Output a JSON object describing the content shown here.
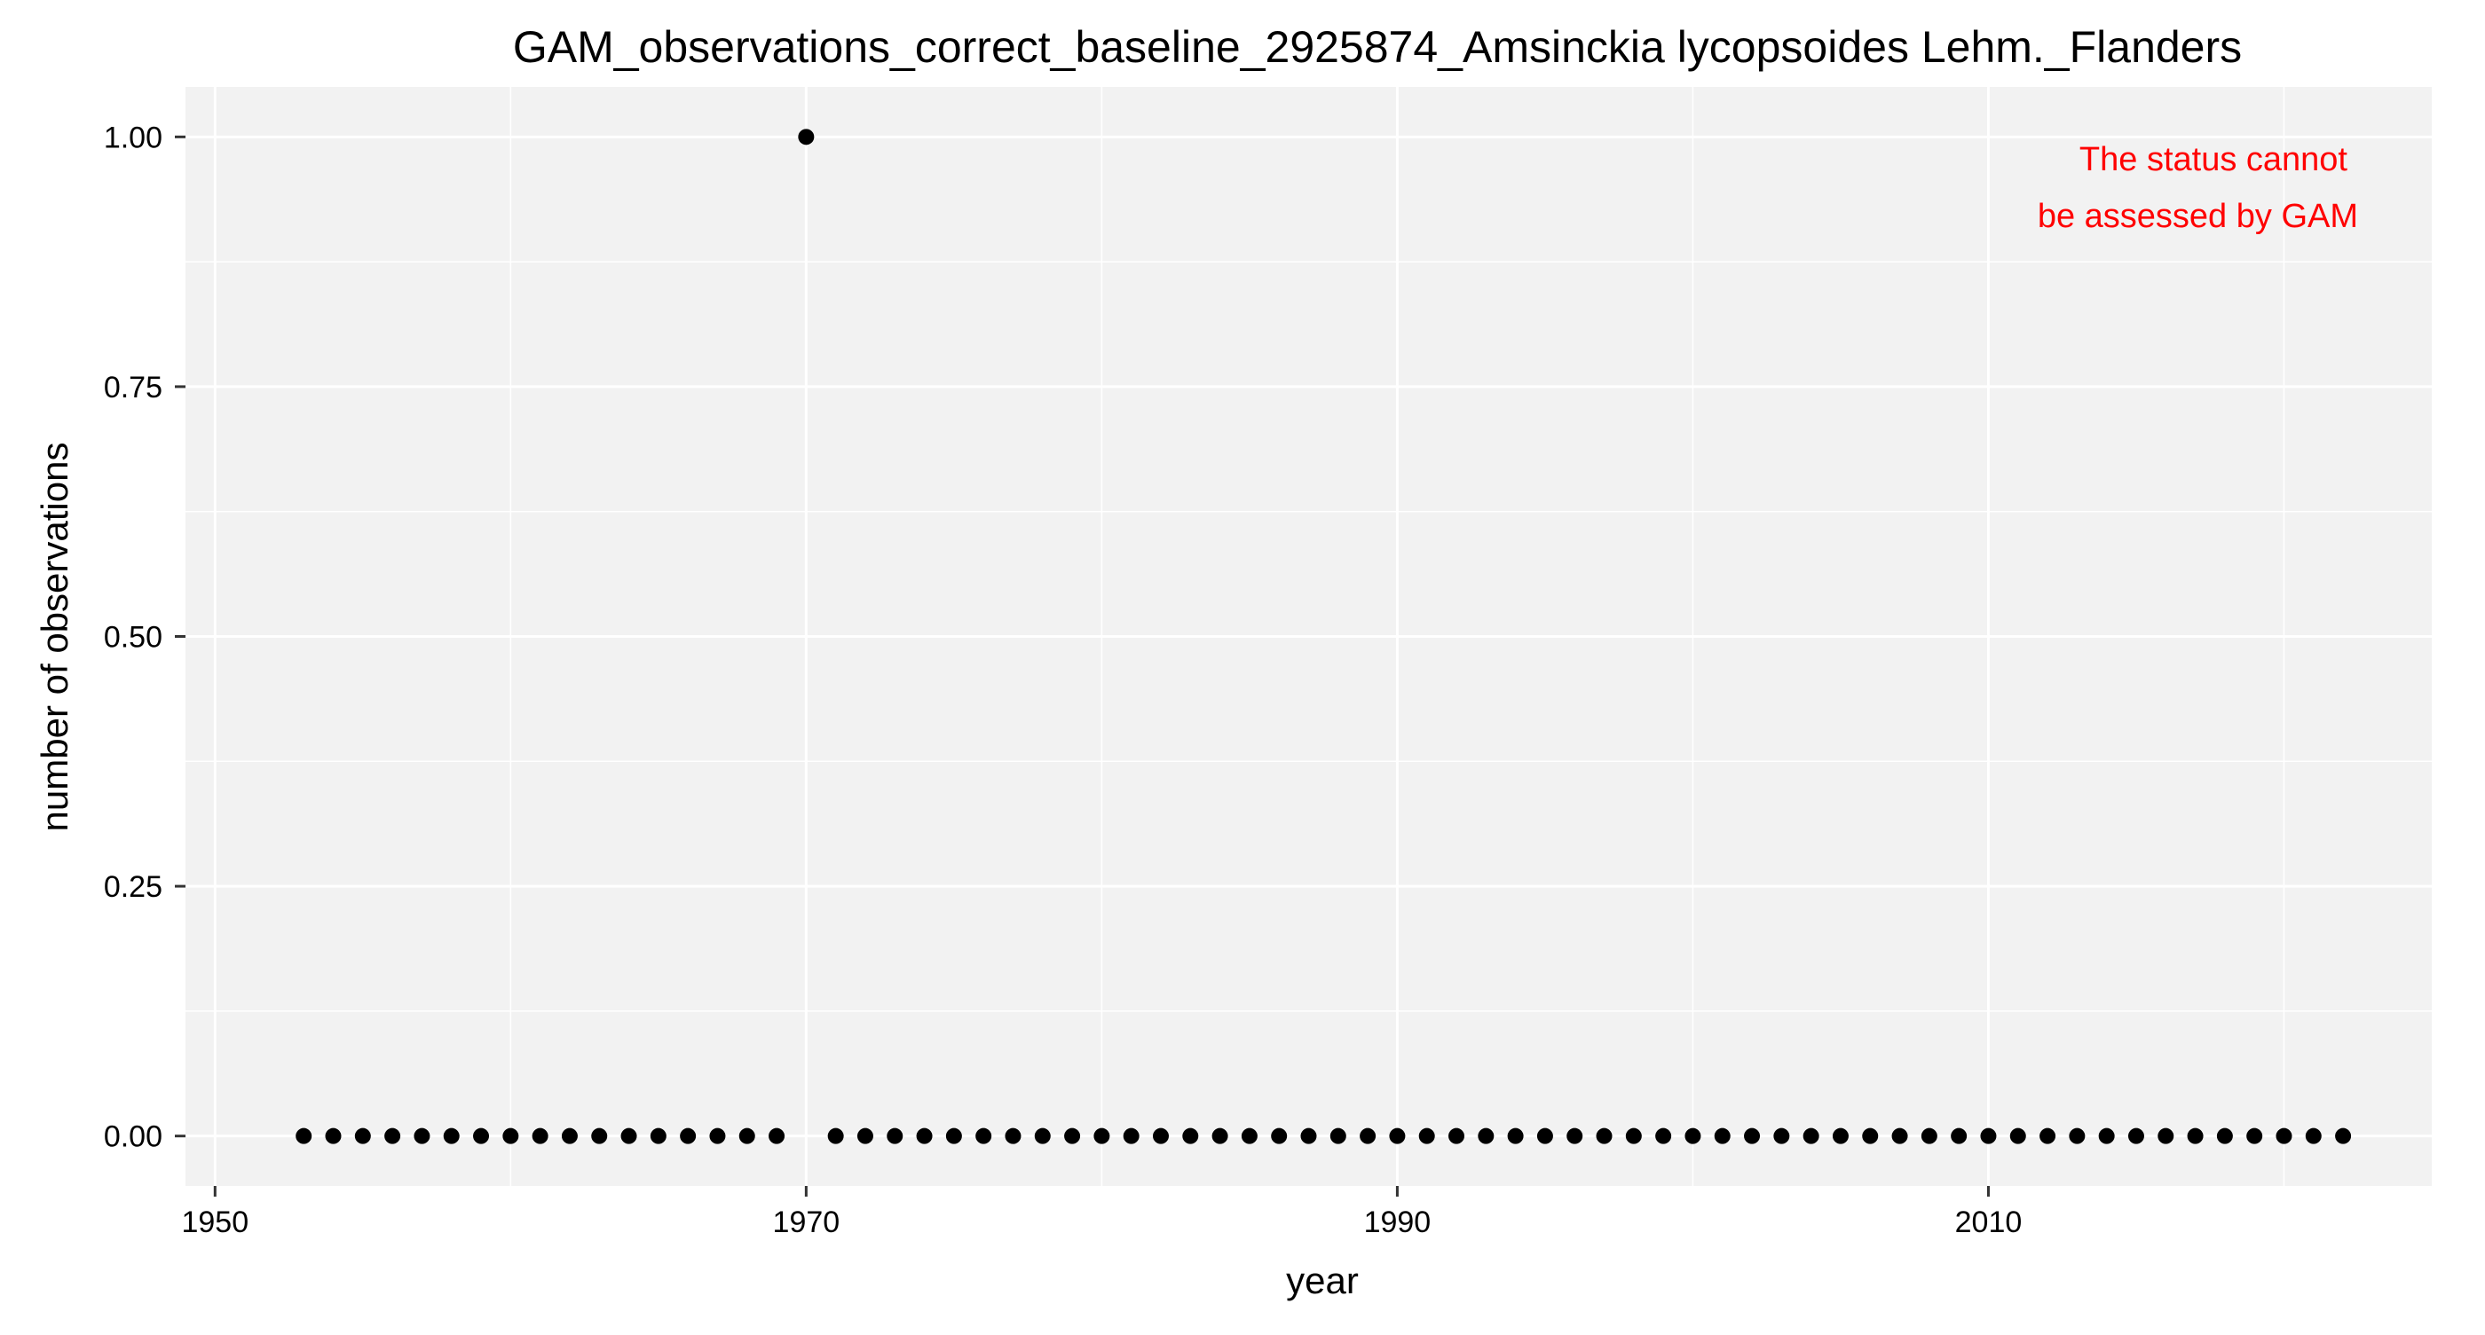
{
  "chart_data": {
    "type": "scatter",
    "title": "GAM_observations_correct_baseline_2925874_Amsinckia lycopsoides Lehm._Flanders",
    "xlabel": "year",
    "ylabel": "number of observations",
    "xlim": [
      1949,
      2025
    ],
    "ylim": [
      -0.05,
      1.05
    ],
    "x_ticks": [
      1950,
      1970,
      1990,
      2010
    ],
    "x_tick_labels": [
      "1950",
      "1970",
      "1990",
      "2010"
    ],
    "y_ticks": [
      0,
      0.25,
      0.5,
      0.75,
      1.0
    ],
    "y_tick_labels": [
      "0.00",
      "0.25",
      "0.50",
      "0.75",
      "1.00"
    ],
    "grid": true,
    "legend": "none",
    "colors": {
      "panel_background": "#f2f2f2",
      "grid_line": "#ffffff",
      "point": "#000000",
      "annotation": "#ff0000"
    },
    "annotation_lines": [
      "The status cannot",
      "be assessed by GAM"
    ],
    "series": [
      {
        "x": [
          1953,
          1954,
          1955,
          1956,
          1957,
          1958,
          1959,
          1960,
          1961,
          1962,
          1963,
          1964,
          1965,
          1966,
          1967,
          1968,
          1969,
          1970,
          1971,
          1972,
          1973,
          1974,
          1975,
          1976,
          1977,
          1978,
          1979,
          1980,
          1981,
          1982,
          1983,
          1984,
          1985,
          1986,
          1987,
          1988,
          1989,
          1990,
          1991,
          1992,
          1993,
          1994,
          1995,
          1996,
          1997,
          1998,
          1999,
          2000,
          2001,
          2002,
          2003,
          2004,
          2005,
          2006,
          2007,
          2008,
          2009,
          2010,
          2011,
          2012,
          2013,
          2014,
          2015,
          2016,
          2017,
          2018,
          2019,
          2020,
          2021,
          2022
        ],
        "y": [
          0,
          0,
          0,
          0,
          0,
          0,
          0,
          0,
          0,
          0,
          0,
          0,
          0,
          0,
          0,
          0,
          0,
          1,
          0,
          0,
          0,
          0,
          0,
          0,
          0,
          0,
          0,
          0,
          0,
          0,
          0,
          0,
          0,
          0,
          0,
          0,
          0,
          0,
          0,
          0,
          0,
          0,
          0,
          0,
          0,
          0,
          0,
          0,
          0,
          0,
          0,
          0,
          0,
          0,
          0,
          0,
          0,
          0,
          0,
          0,
          0,
          0,
          0,
          0,
          0,
          0,
          0,
          0,
          0,
          0
        ]
      }
    ]
  }
}
